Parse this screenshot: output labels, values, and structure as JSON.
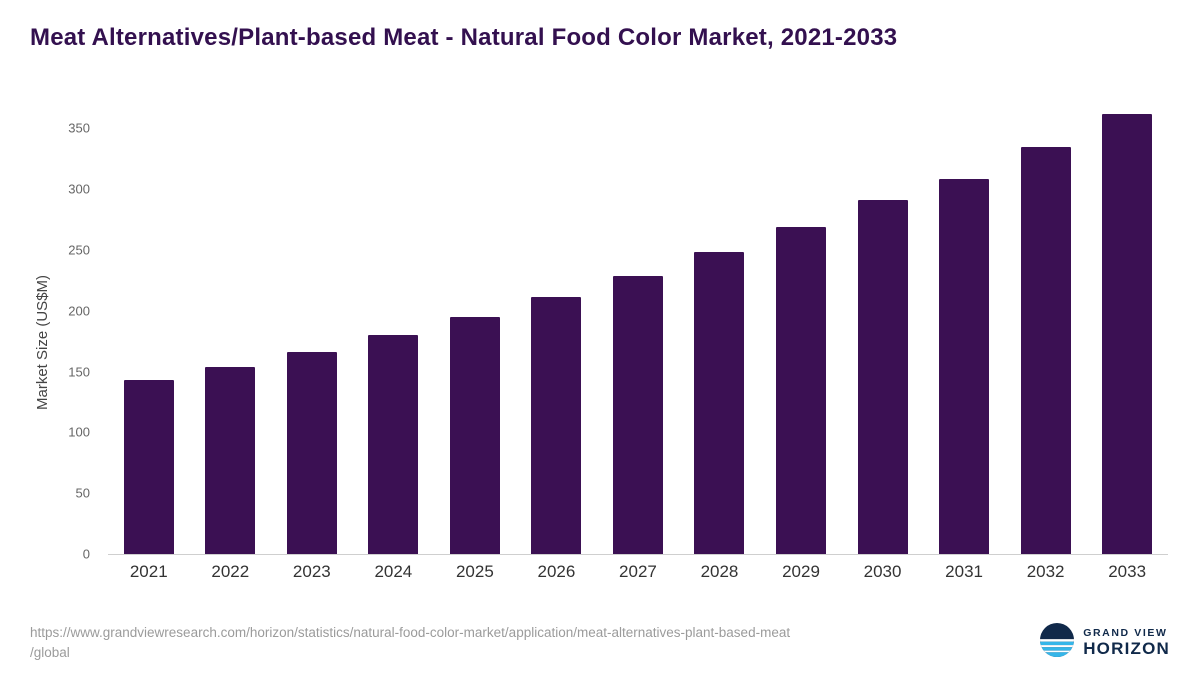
{
  "title": "Meat Alternatives/Plant-based Meat - Natural Food Color Market, 2021-2033",
  "chart_data": {
    "type": "bar",
    "title": "Meat Alternatives/Plant-based Meat - Natural Food Color Market, 2021-2033",
    "categories": [
      "2021",
      "2022",
      "2023",
      "2024",
      "2025",
      "2026",
      "2027",
      "2028",
      "2029",
      "2030",
      "2031",
      "2032",
      "2033"
    ],
    "values": [
      143,
      154,
      166,
      180,
      195,
      211,
      229,
      248,
      269,
      291,
      308,
      335,
      362
    ],
    "xlabel": "",
    "ylabel": "Market Size (US$M)",
    "ylim": [
      0,
      370
    ],
    "yticks": [
      0,
      50,
      100,
      150,
      200,
      250,
      300,
      350
    ],
    "grid": false,
    "legend": false,
    "bar_color": "#3b1053"
  },
  "footer": {
    "source_line1": "https://www.grandviewresearch.com/horizon/statistics/natural-food-color-market/application/meat-alternatives-plant-based-meat",
    "source_line2": "/global",
    "logo": {
      "brand_top": "GRAND VIEW",
      "brand_bottom": "HORIZON",
      "icon": "horizon-circle-icon",
      "navy": "#10294a",
      "blue": "#35b6e9"
    }
  },
  "colors": {
    "title": "#33104f",
    "bar": "#3b1053",
    "axis_label": "#444444",
    "tick_label": "#666666",
    "x_label": "#333333",
    "source_text": "#9b9b9b"
  }
}
